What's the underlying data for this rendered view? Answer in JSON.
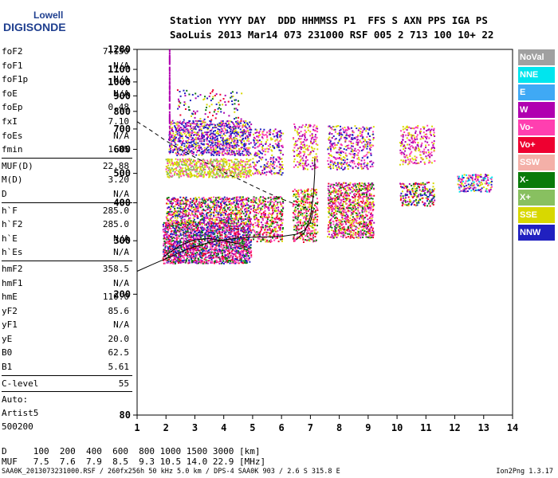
{
  "logo": {
    "line1": "Lowell",
    "line2": "DIGISONDE"
  },
  "header": {
    "row1": "Station YYYY DAY  DDD HHMMSS P1  FFS S AXN PPS IGA PS",
    "row2": "SaoLuis 2013 Mar14 073 231000 RSF 005 2 713 100 10+ 22"
  },
  "params": [
    {
      "k": "foF2",
      "v": "7.150"
    },
    {
      "k": "foF1",
      "v": "N/A"
    },
    {
      "k": "foF1p",
      "v": "N/A"
    },
    {
      "k": "foE",
      "v": "N/A"
    },
    {
      "k": "foEp",
      "v": "0.48"
    },
    {
      "k": "fxI",
      "v": "7.10"
    },
    {
      "k": "foEs",
      "v": "N/A"
    },
    {
      "k": "fmin",
      "v": "1.85"
    },
    {
      "sep": true
    },
    {
      "k": "MUF(D)",
      "v": "22.88"
    },
    {
      "k": "M(D)",
      "v": "3.20"
    },
    {
      "k": "D",
      "v": "N/A"
    },
    {
      "sep": true
    },
    {
      "k": "h`F",
      "v": "285.0"
    },
    {
      "k": "h`F2",
      "v": "285.0"
    },
    {
      "k": "h`E",
      "v": "N/A"
    },
    {
      "k": "h`Es",
      "v": "N/A"
    },
    {
      "sep": true
    },
    {
      "k": "hmF2",
      "v": "358.5"
    },
    {
      "k": "hmF1",
      "v": "N/A"
    },
    {
      "k": "hmE",
      "v": "110.0"
    },
    {
      "k": "yF2",
      "v": "85.6"
    },
    {
      "k": "yF1",
      "v": "N/A"
    },
    {
      "k": "yE",
      "v": "20.0"
    },
    {
      "k": "B0",
      "v": "62.5"
    },
    {
      "k": "B1",
      "v": "5.61"
    },
    {
      "sep": true
    },
    {
      "k": "C-level",
      "v": "55"
    },
    {
      "sep": true
    }
  ],
  "scaler": {
    "line1": "Auto:",
    "line2": "Artist5",
    "line3": "500200"
  },
  "legend": [
    {
      "label": "NoVal",
      "color": "#a0a0a0"
    },
    {
      "label": "NNE",
      "color": "#00e5ee"
    },
    {
      "label": "E",
      "color": "#3fa9f5"
    },
    {
      "label": "W",
      "color": "#b000b0"
    },
    {
      "label": "Vo-",
      "color": "#ff3fb0"
    },
    {
      "label": "Vo+",
      "color": "#ee0030"
    },
    {
      "label": "SSW",
      "color": "#f4b0a8"
    },
    {
      "label": "X-",
      "color": "#0a7a0a"
    },
    {
      "label": "X+",
      "color": "#88c060"
    },
    {
      "label": "SSE",
      "color": "#d8d800"
    },
    {
      "label": "NNW",
      "color": "#2020c0"
    }
  ],
  "muf_table": {
    "row_d": "D     100  200  400  600  800 1000 1500 3000 [km]",
    "row_muf": "MUF   7.5  7.6  7.9  8.5  9.3 10.5 14.0 22.9 [MHz]"
  },
  "footer": {
    "left": "SAA0K_2013073231000.RSF / 260fx256h 50 kHz 5.0 km / DPS-4 SAA0K 903 / 2.6 S 315.8 E",
    "right": "Ion2Png 1.3.17"
  },
  "chart_data": {
    "type": "scatter",
    "xlim": [
      1,
      14
    ],
    "ylim": [
      80,
      1280
    ],
    "y_scale": "log",
    "xticks": [
      1,
      2,
      3,
      4,
      5,
      6,
      7,
      8,
      9,
      10,
      11,
      12,
      13,
      14
    ],
    "yticks": [
      80,
      200,
      300,
      400,
      500,
      600,
      700,
      800,
      900,
      1000,
      1100,
      1280
    ],
    "grid": false,
    "legend_position": "right",
    "echo_clusters": [
      {
        "x": [
          1.9,
          4.9
        ],
        "y": [
          255,
          345
        ],
        "density": 0.85,
        "colors": [
          "#ee0030",
          "#ff3fb0",
          "#b000b0",
          "#2020c0",
          "#0a7a0a"
        ]
      },
      {
        "x": [
          2.0,
          4.9
        ],
        "y": [
          345,
          420
        ],
        "density": 0.65,
        "colors": [
          "#ee0030",
          "#ff3fb0",
          "#d8d800",
          "#b000b0",
          "#0a7a0a",
          "#2020c0"
        ]
      },
      {
        "x": [
          2.0,
          4.9
        ],
        "y": [
          490,
          560
        ],
        "density": 0.7,
        "colors": [
          "#d8d800",
          "#d8d800",
          "#88c060",
          "#ff3fb0"
        ]
      },
      {
        "x": [
          2.1,
          4.9
        ],
        "y": [
          580,
          750
        ],
        "density": 0.6,
        "colors": [
          "#b000b0",
          "#2020c0",
          "#2020c0",
          "#ff3fb0",
          "#d8d800"
        ]
      },
      {
        "x": [
          2.4,
          4.6
        ],
        "y": [
          750,
          950
        ],
        "density": 0.12,
        "colors": [
          "#b000b0",
          "#ee0030",
          "#0a7a0a",
          "#d8d800",
          "#2020c0"
        ]
      },
      {
        "x": [
          5.0,
          6.0
        ],
        "y": [
          300,
          420
        ],
        "density": 0.55,
        "colors": [
          "#ee0030",
          "#ff3fb0",
          "#d8d800",
          "#0a7a0a",
          "#b000b0"
        ]
      },
      {
        "x": [
          5.0,
          6.0
        ],
        "y": [
          500,
          700
        ],
        "density": 0.4,
        "colors": [
          "#d8d800",
          "#b000b0",
          "#2020c0",
          "#ff3fb0"
        ]
      },
      {
        "x": [
          6.4,
          7.2
        ],
        "y": [
          300,
          450
        ],
        "density": 0.55,
        "colors": [
          "#ee0030",
          "#ff3fb0",
          "#d8d800",
          "#0a7a0a"
        ]
      },
      {
        "x": [
          6.4,
          7.2
        ],
        "y": [
          520,
          730
        ],
        "density": 0.35,
        "colors": [
          "#d8d800",
          "#b000b0",
          "#ff3fb0"
        ]
      },
      {
        "x": [
          7.6,
          9.2
        ],
        "y": [
          310,
          470
        ],
        "density": 0.6,
        "colors": [
          "#ee0030",
          "#ff3fb0",
          "#d8d800",
          "#0a7a0a",
          "#b000b0"
        ]
      },
      {
        "x": [
          7.6,
          9.2
        ],
        "y": [
          520,
          720
        ],
        "density": 0.35,
        "colors": [
          "#d8d800",
          "#b000b0",
          "#ff3fb0",
          "#2020c0"
        ]
      },
      {
        "x": [
          10.1,
          11.3
        ],
        "y": [
          395,
          470
        ],
        "density": 0.5,
        "colors": [
          "#0a7a0a",
          "#d8d800",
          "#b000b0",
          "#2020c0",
          "#ee0030"
        ]
      },
      {
        "x": [
          10.1,
          11.3
        ],
        "y": [
          540,
          720
        ],
        "density": 0.35,
        "colors": [
          "#d8d800",
          "#ff3fb0",
          "#b000b0"
        ]
      },
      {
        "x": [
          12.1,
          13.3
        ],
        "y": [
          440,
          500
        ],
        "density": 0.5,
        "colors": [
          "#b000b0",
          "#d8d800",
          "#2020c0",
          "#ff3fb0",
          "#00e5ee"
        ]
      }
    ],
    "column_streak": {
      "x": 2.1,
      "y": [
        650,
        1280
      ],
      "color": "#b000b0"
    },
    "traces": [
      {
        "style": "solid",
        "points": [
          [
            1.0,
            238
          ],
          [
            1.5,
            250
          ],
          [
            2.0,
            262
          ],
          [
            2.5,
            275
          ],
          [
            3.0,
            287
          ],
          [
            3.5,
            296
          ],
          [
            4.0,
            302
          ],
          [
            4.5,
            306
          ],
          [
            5.0,
            308
          ],
          [
            5.5,
            309
          ],
          [
            6.0,
            310
          ],
          [
            6.5,
            315
          ],
          [
            6.8,
            325
          ],
          [
            7.0,
            345
          ],
          [
            7.1,
            380
          ]
        ]
      },
      {
        "style": "solid",
        "points": [
          [
            1.9,
            265
          ],
          [
            2.5,
            290
          ],
          [
            3.0,
            302
          ],
          [
            3.5,
            305
          ],
          [
            4.0,
            300
          ],
          [
            4.5,
            293
          ],
          [
            4.8,
            285
          ]
        ]
      },
      {
        "style": "solid",
        "points": [
          [
            6.5,
            302
          ],
          [
            6.8,
            320
          ],
          [
            7.0,
            360
          ],
          [
            7.1,
            420
          ],
          [
            7.15,
            500
          ],
          [
            7.15,
            560
          ]
        ]
      },
      {
        "style": "dashed",
        "points": [
          [
            1.0,
            740
          ],
          [
            1.5,
            690
          ],
          [
            2.0,
            640
          ],
          [
            2.5,
            600
          ],
          [
            3.0,
            565
          ],
          [
            3.5,
            535
          ],
          [
            4.0,
            505
          ],
          [
            4.5,
            480
          ],
          [
            5.0,
            455
          ],
          [
            5.5,
            432
          ],
          [
            6.0,
            412
          ],
          [
            6.5,
            395
          ],
          [
            7.0,
            380
          ]
        ]
      }
    ]
  }
}
